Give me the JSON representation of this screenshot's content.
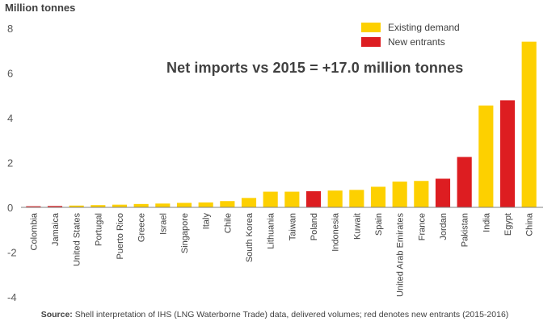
{
  "headline": "Net imports vs 2015 = +17.0 million tonnes",
  "source_label": "Source:",
  "source_text": "Shell interpretation of IHS (LNG Waterborne Trade) data, delivered volumes; red denotes new entrants (2015-2016)",
  "colors": {
    "existing": "#fdd000",
    "new": "#dd1d21",
    "axis": "#808080",
    "text": "#404040",
    "tick": "#595959"
  },
  "chart_data": {
    "type": "bar",
    "ylabel": "Million tonnes",
    "ylim": [
      -4,
      8
    ],
    "yticks": [
      -4,
      -2,
      0,
      2,
      4,
      6,
      8
    ],
    "grid": false,
    "legend_position": "top-right",
    "legend": [
      {
        "label": "Existing demand",
        "color_key": "existing"
      },
      {
        "label": "New entrants",
        "color_key": "new"
      }
    ],
    "categories": [
      "Colombia",
      "Jamaica",
      "United States",
      "Portugal",
      "Puerto Rico",
      "Greece",
      "Israel",
      "Singapore",
      "Italy",
      "Chile",
      "South Korea",
      "Lithuania",
      "Taiwan",
      "Poland",
      "Indonesia",
      "Kuwait",
      "Spain",
      "United Arab Emirates",
      "France",
      "Jordan",
      "Pakistan",
      "India",
      "Egypt",
      "China"
    ],
    "values": [
      0.05,
      0.06,
      0.08,
      0.1,
      0.12,
      0.15,
      0.17,
      0.2,
      0.22,
      0.28,
      0.42,
      0.7,
      0.7,
      0.72,
      0.75,
      0.78,
      0.92,
      1.15,
      1.18,
      1.28,
      2.25,
      4.55,
      4.78,
      7.4
    ],
    "groups": [
      "new",
      "new",
      "existing",
      "existing",
      "existing",
      "existing",
      "existing",
      "existing",
      "existing",
      "existing",
      "existing",
      "existing",
      "existing",
      "new",
      "existing",
      "existing",
      "existing",
      "existing",
      "existing",
      "new",
      "new",
      "existing",
      "new",
      "existing"
    ]
  }
}
